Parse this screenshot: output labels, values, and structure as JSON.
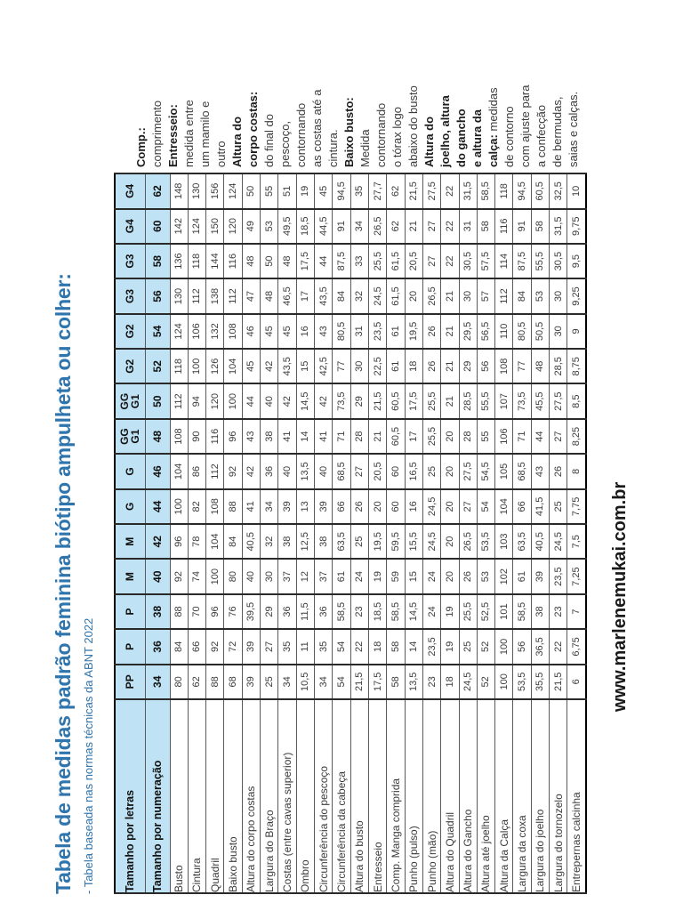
{
  "document": {
    "title": "Tabela de medidas padrão feminina biótipo ampulheta ou colher:",
    "subtitle": "- Tabela baseada nas normas técnicas da ABNT 2022",
    "website": "www.marlenemukai.com.br"
  },
  "colors": {
    "title_blue": "#2e74ad",
    "header_bg": "#bfe3f4",
    "cell_text": "#3c3c3c"
  },
  "table": {
    "header_letters_label": "Tamanho por letras",
    "header_numbers_label": "Tamanho por numeração",
    "size_letters": [
      "PP",
      "P",
      "P",
      "M",
      "M",
      "G",
      "G",
      "GG G1",
      "GG G1",
      "G2",
      "G2",
      "G3",
      "G3",
      "G4",
      "G4"
    ],
    "size_numbers": [
      "34",
      "36",
      "38",
      "40",
      "42",
      "44",
      "46",
      "48",
      "50",
      "52",
      "54",
      "56",
      "58",
      "60",
      "62"
    ],
    "rows": [
      {
        "label": "Busto",
        "values": [
          "80",
          "84",
          "88",
          "92",
          "96",
          "100",
          "104",
          "108",
          "112",
          "118",
          "124",
          "130",
          "136",
          "142",
          "148"
        ]
      },
      {
        "label": "Cintura",
        "values": [
          "62",
          "66",
          "70",
          "74",
          "78",
          "82",
          "86",
          "90",
          "94",
          "100",
          "106",
          "112",
          "118",
          "124",
          "130"
        ]
      },
      {
        "label": "Quadril",
        "values": [
          "88",
          "92",
          "96",
          "100",
          "104",
          "108",
          "112",
          "116",
          "120",
          "126",
          "132",
          "138",
          "144",
          "150",
          "156"
        ]
      },
      {
        "label": "Baixo busto",
        "values": [
          "68",
          "72",
          "76",
          "80",
          "84",
          "88",
          "92",
          "96",
          "100",
          "104",
          "108",
          "112",
          "116",
          "120",
          "124"
        ]
      },
      {
        "label": "Altura do corpo costas",
        "values": [
          "39",
          "39",
          "39,5",
          "40",
          "40,5",
          "41",
          "42",
          "43",
          "44",
          "45",
          "46",
          "47",
          "48",
          "49",
          "50"
        ]
      },
      {
        "label": "Largura do Braço",
        "values": [
          "25",
          "27",
          "29",
          "30",
          "32",
          "34",
          "36",
          "38",
          "40",
          "42",
          "45",
          "48",
          "50",
          "53",
          "55"
        ]
      },
      {
        "label": "Costas (entre cavas superior)",
        "values": [
          "34",
          "35",
          "36",
          "37",
          "38",
          "39",
          "40",
          "41",
          "42",
          "43,5",
          "45",
          "46,5",
          "48",
          "49,5",
          "51"
        ]
      },
      {
        "label": "Ombro",
        "values": [
          "10,5",
          "11",
          "11,5",
          "12",
          "12,5",
          "13",
          "13,5",
          "14",
          "14,5",
          "15",
          "16",
          "17",
          "17,5",
          "18,5",
          "19"
        ]
      },
      {
        "label": "Circunferência do pescoço",
        "values": [
          "34",
          "35",
          "36",
          "37",
          "38",
          "39",
          "40",
          "41",
          "42",
          "42,5",
          "43",
          "43,5",
          "44",
          "44,5",
          "45"
        ]
      },
      {
        "label": "Circunferência da cabeça",
        "values": [
          "54",
          "54",
          "58,5",
          "61",
          "63,5",
          "66",
          "68,5",
          "71",
          "73,5",
          "77",
          "80,5",
          "84",
          "87,5",
          "91",
          "94,5"
        ]
      },
      {
        "label": "Altura do busto",
        "values": [
          "21,5",
          "22",
          "23",
          "24",
          "25",
          "26",
          "27",
          "28",
          "29",
          "30",
          "31",
          "32",
          "33",
          "34",
          "35"
        ]
      },
      {
        "label": "Entresseio",
        "values": [
          "17,5",
          "18",
          "18,5",
          "19",
          "19,5",
          "20",
          "20,5",
          "21",
          "21,5",
          "22,5",
          "23,5",
          "24,5",
          "25,5",
          "26,5",
          "27,7"
        ]
      },
      {
        "label": "Comp. Manga comprida",
        "values": [
          "58",
          "58",
          "58,5",
          "59",
          "59,5",
          "60",
          "60",
          "60,5",
          "60,5",
          "61",
          "61",
          "61,5",
          "61,5",
          "62",
          "62"
        ]
      },
      {
        "label": "Punho (pulso)",
        "values": [
          "13,5",
          "14",
          "14,5",
          "15",
          "15,5",
          "16",
          "16,5",
          "17",
          "17,5",
          "18",
          "19,5",
          "20",
          "20,5",
          "21",
          "21,5"
        ]
      },
      {
        "label": "Punho (mão)",
        "values": [
          "23",
          "23,5",
          "24",
          "24",
          "24,5",
          "24,5",
          "25",
          "25,5",
          "25,5",
          "26",
          "26",
          "26,5",
          "27",
          "27",
          "27,5"
        ]
      },
      {
        "label": "Altura do Quadril",
        "values": [
          "18",
          "19",
          "19",
          "20",
          "20",
          "20",
          "20",
          "20",
          "21",
          "21",
          "21",
          "21",
          "22",
          "22",
          "22"
        ]
      },
      {
        "label": "Altura do Gancho",
        "values": [
          "24,5",
          "25",
          "25,5",
          "26",
          "26,5",
          "27",
          "27,5",
          "28",
          "28,5",
          "29",
          "29,5",
          "30",
          "30,5",
          "31",
          "31,5"
        ]
      },
      {
        "label": "Altura até joelho",
        "values": [
          "52",
          "52",
          "52,5",
          "53",
          "53,5",
          "54",
          "54,5",
          "55",
          "55,5",
          "56",
          "56,5",
          "57",
          "57,5",
          "58",
          "58,5"
        ]
      },
      {
        "label": "Altura da Calça",
        "values": [
          "100",
          "100",
          "101",
          "102",
          "103",
          "104",
          "105",
          "106",
          "107",
          "108",
          "110",
          "112",
          "114",
          "116",
          "118"
        ]
      },
      {
        "label": "Largura da coxa",
        "values": [
          "53,5",
          "56",
          "58,5",
          "61",
          "63,5",
          "66",
          "68,5",
          "71",
          "73,5",
          "77",
          "80,5",
          "84",
          "87,5",
          "91",
          "94,5"
        ]
      },
      {
        "label": "Largura do joelho",
        "values": [
          "35,5",
          "36,5",
          "38",
          "39",
          "40,5",
          "41,5",
          "43",
          "44",
          "45,5",
          "48",
          "50,5",
          "53",
          "55,5",
          "58",
          "60,5"
        ]
      },
      {
        "label": "Largura do tornozelo",
        "values": [
          "21,5",
          "22",
          "23",
          "23,5",
          "24,5",
          "25",
          "26",
          "27",
          "27,5",
          "28,5",
          "30",
          "30",
          "30,5",
          "31,5",
          "32,5"
        ]
      },
      {
        "label": "Entrepernas calcinha",
        "values": [
          "6",
          "6,75",
          "7",
          "7,25",
          "7,5",
          "7,75",
          "8",
          "8,25",
          "8,5",
          "8,75",
          "9",
          "9,25",
          "9,5",
          "9,75",
          "10"
        ]
      }
    ]
  },
  "notes": {
    "lines": [
      [
        {
          "t": "Comp.:",
          "b": 1
        }
      ],
      [
        {
          "t": "comprimento",
          "b": 0
        }
      ],
      [
        {
          "t": "Entresseio:",
          "b": 1
        }
      ],
      [
        {
          "t": "medida entre",
          "b": 0
        }
      ],
      [
        {
          "t": "um mamilo e",
          "b": 0
        }
      ],
      [
        {
          "t": "outro",
          "b": 0
        }
      ],
      [
        {
          "t": "Altura do",
          "b": 1
        }
      ],
      [
        {
          "t": "corpo costas:",
          "b": 1
        }
      ],
      [
        {
          "t": "do final do",
          "b": 0
        }
      ],
      [
        {
          "t": "pescoço,",
          "b": 0
        }
      ],
      [
        {
          "t": "contornando",
          "b": 0
        }
      ],
      [
        {
          "t": "as costas até a",
          "b": 0
        }
      ],
      [
        {
          "t": "cintura.",
          "b": 0
        }
      ],
      [
        {
          "t": "Baixo busto:",
          "b": 1
        }
      ],
      [
        {
          "t": "Medida",
          "b": 0
        }
      ],
      [
        {
          "t": "contornando",
          "b": 0
        }
      ],
      [
        {
          "t": "o tórax logo",
          "b": 0
        }
      ],
      [
        {
          "t": "abaixo do busto",
          "b": 0
        }
      ],
      [
        {
          "t": "Altura do",
          "b": 1
        }
      ],
      [
        {
          "t": "joelho, altura",
          "b": 1
        }
      ],
      [
        {
          "t": "do gancho",
          "b": 1
        }
      ],
      [
        {
          "t": "e altura da",
          "b": 1
        }
      ],
      [
        {
          "t": "calça:",
          "b": 1
        },
        {
          "t": " medidas",
          "b": 0
        }
      ],
      [
        {
          "t": "de contorno",
          "b": 0
        }
      ],
      [
        {
          "t": "com ajuste para",
          "b": 0
        }
      ],
      [
        {
          "t": "a confecção",
          "b": 0
        }
      ],
      [
        {
          "t": "de bermudas,",
          "b": 0
        }
      ],
      [
        {
          "t": "saias e calças.",
          "b": 0
        }
      ]
    ]
  }
}
